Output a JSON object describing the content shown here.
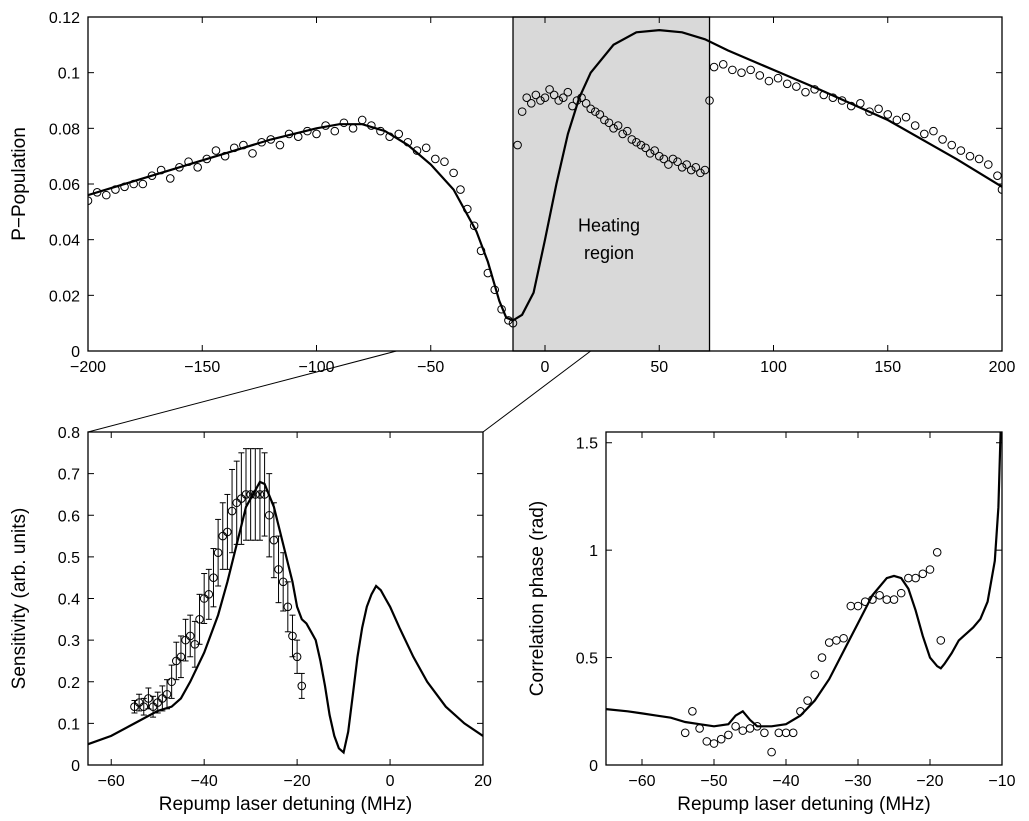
{
  "chart_data": [
    {
      "id": "top",
      "type": "scatter",
      "title": "",
      "xlabel": "",
      "ylabel": "P−Population",
      "xlim": [
        -200,
        200
      ],
      "ylim": [
        0,
        0.12
      ],
      "xticks": [
        -200,
        -150,
        -100,
        -50,
        0,
        50,
        100,
        150,
        200
      ],
      "xtick_labels": [
        "−200",
        "−150",
        "−100",
        "−50",
        "0",
        "50",
        "100",
        "150",
        "200"
      ],
      "yticks": [
        0,
        0.02,
        0.04,
        0.06,
        0.08,
        0.1,
        0.12
      ],
      "ytick_labels": [
        "0",
        "0.02",
        "0.04",
        "0.06",
        "0.08",
        "0.1",
        "0.12"
      ],
      "grid": false,
      "shaded_region": {
        "x": [
          -14,
          72
        ],
        "color": "#d9d9d9"
      },
      "annotations": [
        {
          "text": "Heating",
          "x": 28,
          "y": 0.043
        },
        {
          "text": "region",
          "x": 28,
          "y": 0.033
        }
      ],
      "series": [
        {
          "style": "line",
          "x": [
            -200,
            -180,
            -160,
            -140,
            -120,
            -100,
            -90,
            -80,
            -70,
            -60,
            -50,
            -40,
            -30,
            -25,
            -20,
            -17,
            -14,
            -10,
            -5,
            0,
            5,
            10,
            15,
            20,
            30,
            40,
            50,
            60,
            70,
            80,
            100,
            120,
            150,
            180,
            200
          ],
          "y": [
            0.056,
            0.061,
            0.066,
            0.071,
            0.076,
            0.08,
            0.0815,
            0.0815,
            0.079,
            0.074,
            0.067,
            0.058,
            0.043,
            0.032,
            0.018,
            0.012,
            0.011,
            0.013,
            0.021,
            0.04,
            0.06,
            0.078,
            0.091,
            0.1,
            0.11,
            0.1145,
            0.1153,
            0.1145,
            0.112,
            0.108,
            0.101,
            0.094,
            0.083,
            0.069,
            0.059
          ]
        },
        {
          "style": "circles",
          "x": [
            -200,
            -196,
            -192,
            -188,
            -184,
            -180,
            -176,
            -172,
            -168,
            -164,
            -160,
            -156,
            -152,
            -148,
            -144,
            -140,
            -136,
            -132,
            -128,
            -124,
            -120,
            -116,
            -112,
            -108,
            -104,
            -100,
            -96,
            -92,
            -88,
            -84,
            -80,
            -76,
            -72,
            -68,
            -64,
            -60,
            -56,
            -52,
            -48,
            -44,
            -40,
            -37,
            -34,
            -31,
            -28,
            -25,
            -22,
            -19,
            -16,
            -14,
            -12,
            -10,
            -8,
            -6,
            -4,
            -2,
            0,
            2,
            4,
            6,
            8,
            10,
            12,
            14,
            16,
            18,
            20,
            22,
            24,
            26,
            28,
            30,
            32,
            34,
            36,
            38,
            40,
            42,
            44,
            46,
            48,
            50,
            52,
            54,
            56,
            58,
            60,
            62,
            64,
            66,
            68,
            70,
            72,
            74,
            78,
            82,
            86,
            90,
            94,
            98,
            102,
            106,
            110,
            114,
            118,
            122,
            126,
            130,
            134,
            138,
            142,
            146,
            150,
            154,
            158,
            162,
            166,
            170,
            174,
            178,
            182,
            186,
            190,
            194,
            198,
            200
          ],
          "y": [
            0.054,
            0.057,
            0.056,
            0.058,
            0.059,
            0.06,
            0.06,
            0.063,
            0.065,
            0.062,
            0.066,
            0.068,
            0.066,
            0.069,
            0.072,
            0.07,
            0.073,
            0.074,
            0.071,
            0.075,
            0.076,
            0.074,
            0.078,
            0.077,
            0.079,
            0.078,
            0.081,
            0.079,
            0.082,
            0.08,
            0.083,
            0.081,
            0.079,
            0.077,
            0.078,
            0.075,
            0.072,
            0.073,
            0.069,
            0.068,
            0.064,
            0.058,
            0.051,
            0.045,
            0.036,
            0.028,
            0.022,
            0.015,
            0.011,
            0.01,
            0.074,
            0.086,
            0.091,
            0.089,
            0.092,
            0.09,
            0.091,
            0.094,
            0.092,
            0.09,
            0.091,
            0.093,
            0.088,
            0.09,
            0.091,
            0.089,
            0.087,
            0.086,
            0.085,
            0.083,
            0.082,
            0.08,
            0.081,
            0.078,
            0.079,
            0.076,
            0.075,
            0.074,
            0.073,
            0.071,
            0.072,
            0.07,
            0.069,
            0.067,
            0.069,
            0.068,
            0.066,
            0.067,
            0.065,
            0.066,
            0.064,
            0.065,
            0.09,
            0.102,
            0.103,
            0.101,
            0.1,
            0.101,
            0.099,
            0.097,
            0.098,
            0.096,
            0.095,
            0.093,
            0.094,
            0.092,
            0.091,
            0.09,
            0.088,
            0.089,
            0.086,
            0.087,
            0.085,
            0.083,
            0.084,
            0.081,
            0.078,
            0.079,
            0.076,
            0.074,
            0.072,
            0.07,
            0.069,
            0.067,
            0.063,
            0.058
          ]
        }
      ]
    },
    {
      "id": "bottom-left",
      "type": "line",
      "title": "",
      "xlabel": "Repump laser detuning (MHz)",
      "ylabel": "Sensitivity (arb. units)",
      "xlim": [
        -65,
        20
      ],
      "ylim": [
        0,
        0.8
      ],
      "xticks": [
        -60,
        -40,
        -20,
        0,
        20
      ],
      "xtick_labels": [
        "−60",
        "−40",
        "−20",
        "0",
        "20"
      ],
      "yticks": [
        0,
        0.1,
        0.2,
        0.3,
        0.4,
        0.5,
        0.6,
        0.7,
        0.8
      ],
      "ytick_labels": [
        "0",
        "0.1",
        "0.2",
        "0.3",
        "0.4",
        "0.5",
        "0.6",
        "0.7",
        "0.8"
      ],
      "grid": false,
      "series": [
        {
          "style": "line",
          "x": [
            -65,
            -60,
            -55,
            -50,
            -47,
            -45,
            -43,
            -40,
            -37,
            -35,
            -33,
            -31,
            -29,
            -28,
            -27,
            -25,
            -23,
            -21,
            -20,
            -19,
            -18,
            -17,
            -16,
            -15,
            -14,
            -13,
            -12,
            -11,
            -10,
            -9,
            -8,
            -7,
            -6,
            -5,
            -4,
            -3,
            -2,
            -1,
            0,
            2,
            5,
            8,
            12,
            16,
            20
          ],
          "y": [
            0.05,
            0.07,
            0.1,
            0.13,
            0.14,
            0.16,
            0.2,
            0.27,
            0.36,
            0.44,
            0.53,
            0.62,
            0.66,
            0.68,
            0.675,
            0.62,
            0.53,
            0.44,
            0.38,
            0.35,
            0.34,
            0.32,
            0.3,
            0.25,
            0.19,
            0.12,
            0.07,
            0.04,
            0.03,
            0.08,
            0.17,
            0.26,
            0.33,
            0.38,
            0.41,
            0.43,
            0.42,
            0.4,
            0.38,
            0.33,
            0.26,
            0.2,
            0.14,
            0.1,
            0.07
          ]
        },
        {
          "style": "errorbar",
          "x": [
            -55,
            -54,
            -53,
            -52,
            -51,
            -50,
            -49,
            -48,
            -47,
            -46,
            -45,
            -44,
            -43,
            -42,
            -41,
            -40,
            -39,
            -38,
            -37,
            -36,
            -35,
            -34,
            -33,
            -32,
            -31,
            -30,
            -29,
            -28,
            -27,
            -26,
            -25,
            -24,
            -23,
            -22,
            -21,
            -20,
            -19
          ],
          "y": [
            0.14,
            0.15,
            0.14,
            0.16,
            0.14,
            0.15,
            0.16,
            0.17,
            0.2,
            0.25,
            0.26,
            0.3,
            0.31,
            0.29,
            0.35,
            0.4,
            0.41,
            0.45,
            0.51,
            0.55,
            0.56,
            0.61,
            0.63,
            0.64,
            0.65,
            0.65,
            0.65,
            0.65,
            0.65,
            0.6,
            0.54,
            0.47,
            0.44,
            0.38,
            0.31,
            0.26,
            0.19
          ],
          "err": [
            0.015,
            0.02,
            0.02,
            0.025,
            0.025,
            0.025,
            0.03,
            0.035,
            0.04,
            0.045,
            0.05,
            0.05,
            0.05,
            0.055,
            0.06,
            0.06,
            0.06,
            0.07,
            0.08,
            0.08,
            0.09,
            0.1,
            0.1,
            0.11,
            0.11,
            0.11,
            0.11,
            0.11,
            0.1,
            0.1,
            0.09,
            0.08,
            0.07,
            0.06,
            0.05,
            0.04,
            0.03
          ]
        }
      ]
    },
    {
      "id": "bottom-right",
      "type": "scatter",
      "title": "",
      "xlabel": "Repump laser detuning (MHz)",
      "ylabel": "Correlation phase (rad)",
      "xlim": [
        -65,
        -10
      ],
      "ylim": [
        0,
        1.55
      ],
      "xticks": [
        -60,
        -50,
        -40,
        -30,
        -20,
        -10
      ],
      "xtick_labels": [
        "−60",
        "−50",
        "−40",
        "−30",
        "−20",
        "−10"
      ],
      "yticks": [
        0,
        0.5,
        1,
        1.5
      ],
      "ytick_labels": [
        "0",
        "0.5",
        "1",
        "1.5"
      ],
      "grid": false,
      "series": [
        {
          "style": "line",
          "x": [
            -65,
            -62,
            -60,
            -58,
            -56,
            -54,
            -52,
            -50,
            -48,
            -47,
            -46,
            -45,
            -44,
            -42,
            -40,
            -38,
            -36,
            -34,
            -32,
            -30,
            -28,
            -26,
            -25,
            -24,
            -23,
            -22,
            -21,
            -20,
            -19,
            -18.5,
            -18,
            -17,
            -16,
            -15,
            -14,
            -13,
            -12,
            -11,
            -10.5,
            -10.2
          ],
          "y": [
            0.26,
            0.25,
            0.24,
            0.23,
            0.22,
            0.2,
            0.19,
            0.18,
            0.19,
            0.23,
            0.25,
            0.21,
            0.18,
            0.18,
            0.19,
            0.23,
            0.3,
            0.4,
            0.53,
            0.66,
            0.79,
            0.87,
            0.88,
            0.87,
            0.82,
            0.72,
            0.6,
            0.5,
            0.46,
            0.45,
            0.47,
            0.52,
            0.58,
            0.61,
            0.64,
            0.68,
            0.76,
            0.95,
            1.2,
            1.55
          ]
        },
        {
          "style": "circles",
          "x": [
            -54,
            -53,
            -52,
            -51,
            -50,
            -49,
            -48,
            -47,
            -46,
            -45,
            -44,
            -43,
            -42,
            -41,
            -40,
            -39,
            -38,
            -37,
            -36,
            -35,
            -34,
            -33,
            -32,
            -31,
            -30,
            -29,
            -28,
            -27,
            -26,
            -25,
            -24,
            -23,
            -22,
            -21,
            -20,
            -19,
            -18.5
          ],
          "y": [
            0.15,
            0.25,
            0.17,
            0.11,
            0.1,
            0.12,
            0.14,
            0.18,
            0.16,
            0.17,
            0.18,
            0.15,
            0.06,
            0.15,
            0.15,
            0.15,
            0.25,
            0.3,
            0.42,
            0.5,
            0.57,
            0.58,
            0.59,
            0.74,
            0.74,
            0.76,
            0.77,
            0.79,
            0.77,
            0.77,
            0.8,
            0.87,
            0.87,
            0.89,
            0.91,
            0.99,
            0.58
          ]
        }
      ]
    }
  ]
}
